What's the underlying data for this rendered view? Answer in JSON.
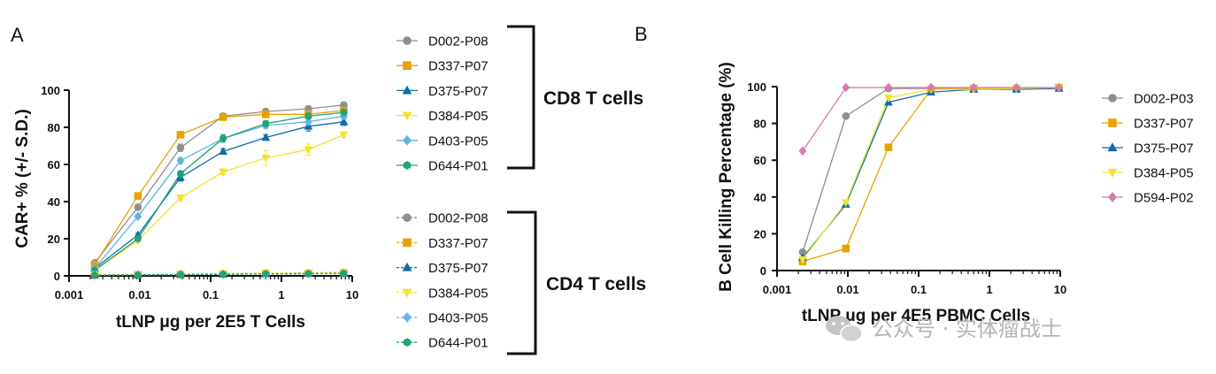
{
  "colors": {
    "D002": "#8f8f8f",
    "D337": "#e8a202",
    "D375": "#0f6ea5",
    "D384": "#f2e230",
    "D403": "#5fb4e6",
    "D644": "#1fa37a",
    "D594": "#d47cab"
  },
  "watermark": {
    "text": "公众号 · 实体瘤战士",
    "icon": "wechat-icon"
  },
  "chart_data": [
    {
      "id": "A",
      "type": "line",
      "panel_label": "A",
      "xscale": "log",
      "xlim": [
        0.001,
        10
      ],
      "ylim": [
        0,
        100
      ],
      "xticks": [
        0.001,
        0.01,
        0.1,
        1,
        10
      ],
      "xtick_labels": [
        "0.001",
        "0.01",
        "0.1",
        "1",
        "10"
      ],
      "yticks": [
        0,
        20,
        40,
        60,
        80,
        100
      ],
      "ytick_labels": [
        "0",
        "20",
        "40",
        "60",
        "80",
        "100"
      ],
      "xlabel": "tLNP μg per 2E5 T Cells",
      "ylabel": "CAR+ % (+/- S.D.)",
      "x": [
        0.0023,
        0.0094,
        0.0375,
        0.15,
        0.6,
        2.4,
        7.6
      ],
      "groups": [
        {
          "label": "CD8 T cells"
        },
        {
          "label": "CD4 T cells"
        }
      ],
      "series": [
        {
          "name": "D002-P08",
          "group": "CD8 T cells",
          "key": "D002",
          "marker": "circle",
          "dashed": false,
          "values": [
            7,
            37,
            69,
            86,
            88.5,
            90,
            92
          ],
          "err": [
            1,
            1.5,
            2,
            1.5,
            1.5,
            1.5,
            1.5
          ]
        },
        {
          "name": "D337-P07",
          "group": "CD8 T cells",
          "key": "D337",
          "marker": "square",
          "dashed": false,
          "values": [
            6,
            43,
            76,
            85.5,
            87,
            87,
            89
          ],
          "err": [
            1,
            1.5,
            1.5,
            1.5,
            1.5,
            1.5,
            1.5
          ]
        },
        {
          "name": "D375-P07",
          "group": "CD8 T cells",
          "key": "D375",
          "marker": "triangle",
          "dashed": false,
          "values": [
            4,
            22,
            53,
            67,
            74.5,
            80.5,
            83
          ],
          "err": [
            1,
            1,
            2,
            1.5,
            1.5,
            2.5,
            2
          ]
        },
        {
          "name": "D384-P05",
          "group": "CD8 T cells",
          "key": "D384",
          "marker": "triangle-down",
          "dashed": false,
          "values": [
            3,
            19,
            42,
            56,
            63.5,
            68,
            76
          ],
          "err": [
            1,
            1,
            1.5,
            1.5,
            4,
            3,
            1.5
          ]
        },
        {
          "name": "D403-P05",
          "group": "CD8 T cells",
          "key": "D403",
          "marker": "diamond",
          "dashed": false,
          "values": [
            4,
            32,
            62,
            74,
            81,
            83,
            86
          ],
          "err": [
            1,
            1,
            1.5,
            2,
            1.5,
            1.5,
            1.5
          ]
        },
        {
          "name": "D644-P01",
          "group": "CD8 T cells",
          "key": "D644",
          "marker": "hexagon",
          "dashed": false,
          "values": [
            3,
            20,
            55,
            74,
            82,
            86,
            88
          ],
          "err": [
            1,
            1,
            1.5,
            2,
            1.5,
            1.5,
            1.5
          ]
        },
        {
          "name": "D002-P08",
          "group": "CD4 T cells",
          "key": "D002",
          "marker": "circle",
          "dashed": true,
          "values": [
            0.5,
            0.6,
            0.8,
            1.0,
            1.2,
            1.3,
            1.5
          ],
          "err": [
            0.3,
            0.3,
            0.3,
            0.3,
            0.3,
            0.3,
            0.3
          ]
        },
        {
          "name": "D337-P07",
          "group": "CD4 T cells",
          "key": "D337",
          "marker": "square",
          "dashed": true,
          "values": [
            0.5,
            0.6,
            0.8,
            1.0,
            1.3,
            1.4,
            1.6
          ],
          "err": [
            0.3,
            0.3,
            0.3,
            0.3,
            0.3,
            0.3,
            0.3
          ]
        },
        {
          "name": "D375-P07",
          "group": "CD4 T cells",
          "key": "D375",
          "marker": "triangle",
          "dashed": true,
          "values": [
            0.4,
            0.5,
            0.7,
            0.9,
            1.1,
            1.2,
            1.4
          ],
          "err": [
            0.3,
            0.3,
            0.3,
            0.3,
            0.3,
            0.3,
            0.3
          ]
        },
        {
          "name": "D384-P05",
          "group": "CD4 T cells",
          "key": "D384",
          "marker": "triangle-down",
          "dashed": true,
          "values": [
            0.5,
            0.7,
            0.9,
            1.2,
            1.5,
            1.7,
            2.0
          ],
          "err": [
            0.3,
            0.3,
            0.3,
            0.3,
            0.3,
            0.3,
            0.3
          ]
        },
        {
          "name": "D403-P05",
          "group": "CD4 T cells",
          "key": "D403",
          "marker": "diamond",
          "dashed": true,
          "values": [
            0.4,
            0.5,
            0.7,
            0.9,
            1.1,
            1.2,
            1.3
          ],
          "err": [
            0.3,
            0.3,
            0.3,
            0.3,
            0.3,
            0.3,
            0.3
          ]
        },
        {
          "name": "D644-P01",
          "group": "CD4 T cells",
          "key": "D644",
          "marker": "hexagon",
          "dashed": true,
          "values": [
            0.4,
            0.5,
            0.7,
            0.9,
            1.1,
            1.2,
            1.4
          ],
          "err": [
            0.3,
            0.3,
            0.3,
            0.3,
            0.3,
            0.3,
            0.3
          ]
        }
      ]
    },
    {
      "id": "B",
      "type": "line",
      "panel_label": "B",
      "xscale": "log",
      "xlim": [
        0.001,
        10
      ],
      "ylim": [
        0,
        100
      ],
      "xticks": [
        0.001,
        0.01,
        0.1,
        1,
        10
      ],
      "xtick_labels": [
        "0.001",
        "0.01",
        "0.1",
        "1",
        "10"
      ],
      "yticks": [
        0,
        20,
        40,
        60,
        80,
        100
      ],
      "ytick_labels": [
        "0",
        "20",
        "40",
        "60",
        "80",
        "100"
      ],
      "xlabel": "tLNP μg per 4E5 PBMC Cells",
      "ylabel": "B Cell Killing Percentage (%)",
      "x": [
        0.0023,
        0.0094,
        0.0375,
        0.15,
        0.6,
        2.4,
        9.6
      ],
      "series": [
        {
          "name": "D002-P03",
          "key": "D002",
          "marker": "circle",
          "values": [
            10,
            84,
            99,
            99,
            99,
            99,
            99.5
          ]
        },
        {
          "name": "D337-P07",
          "key": "D337",
          "marker": "square",
          "values": [
            5,
            12,
            67,
            98.5,
            99,
            99,
            99.5
          ]
        },
        {
          "name": "D375-P07",
          "key": "D375",
          "marker": "triangle",
          "values": [
            7,
            36,
            91.5,
            97,
            98.5,
            98.5,
            99
          ]
        },
        {
          "name": "D384-P05",
          "key": "D384",
          "marker": "triangle-down",
          "values": [
            6,
            37,
            94,
            98.5,
            98.5,
            99,
            99.5
          ]
        },
        {
          "name": "D594-P02",
          "key": "D594",
          "marker": "diamond",
          "values": [
            65,
            99.5,
            99.5,
            99.5,
            99.5,
            99.5,
            99.5
          ]
        }
      ]
    }
  ]
}
